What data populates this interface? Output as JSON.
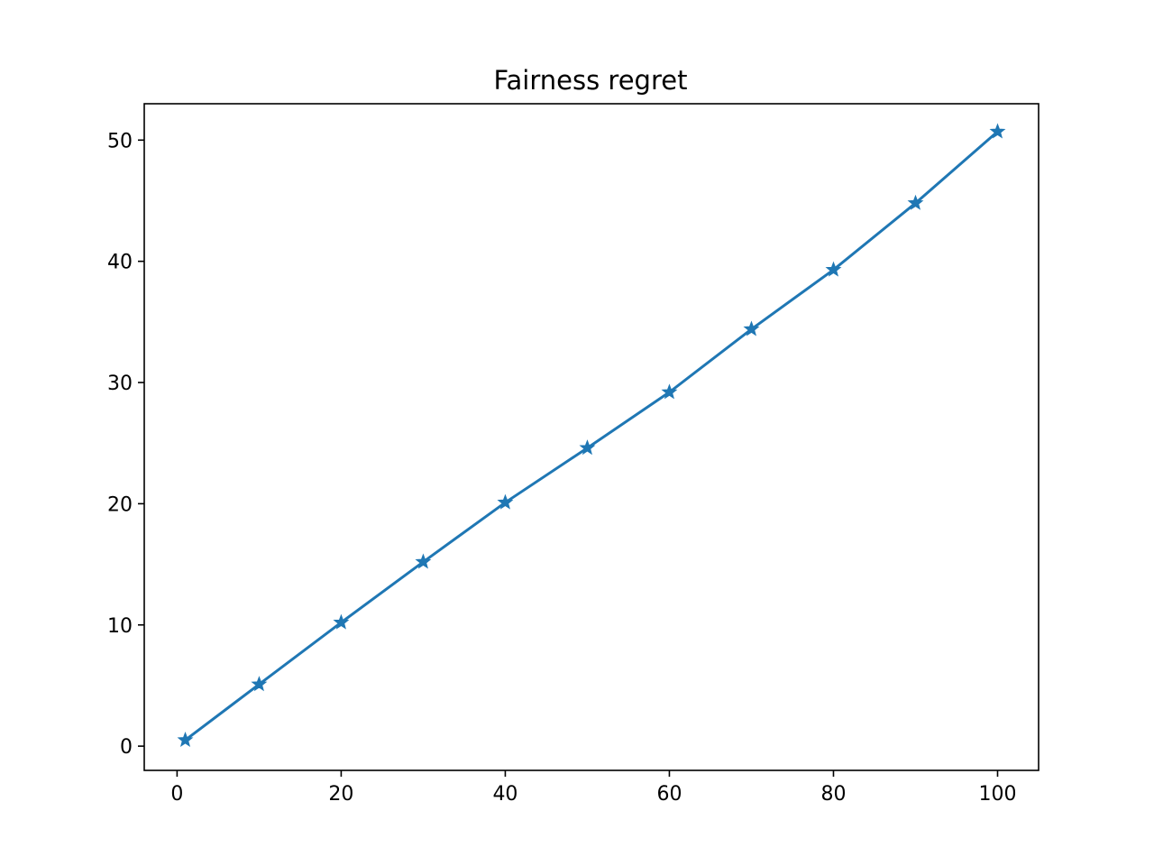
{
  "chart_data": {
    "type": "line",
    "title": "Fairness regret",
    "xlabel": "",
    "ylabel": "",
    "marker": "star",
    "xlim": [
      -4,
      105
    ],
    "ylim": [
      -2,
      53
    ],
    "xticks": [
      0,
      20,
      40,
      60,
      80,
      100
    ],
    "yticks": [
      0,
      10,
      20,
      30,
      40,
      50
    ],
    "xtick_labels": [
      "0",
      "20",
      "40",
      "60",
      "80",
      "100"
    ],
    "ytick_labels": [
      "0",
      "10",
      "20",
      "30",
      "40",
      "50"
    ],
    "grid": false,
    "legend": "none",
    "series_color": "#1f77b4",
    "series": [
      {
        "x": [
          1,
          10,
          20,
          30,
          40,
          50,
          60,
          70,
          80,
          90,
          100
        ],
        "y": [
          0.5,
          5.1,
          10.2,
          15.2,
          20.1,
          24.6,
          29.2,
          34.4,
          39.3,
          44.8,
          50.7
        ]
      }
    ]
  }
}
